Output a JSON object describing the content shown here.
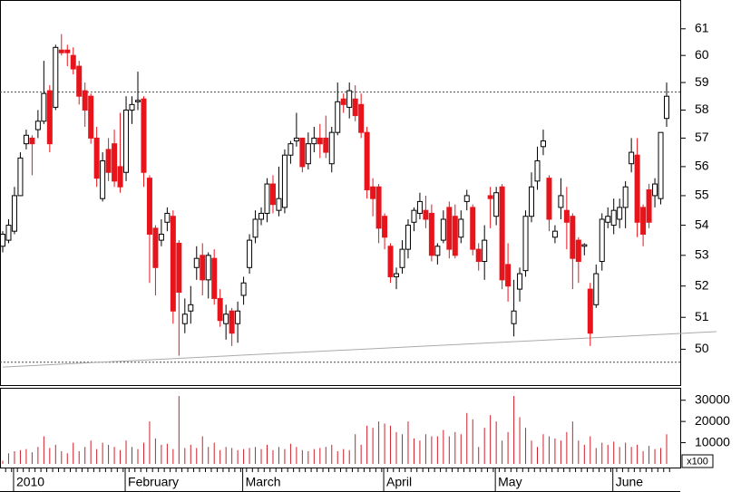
{
  "chart_data": {
    "type": "candlestick",
    "log_scale": true,
    "categories": [
      null,
      null,
      "2010",
      null,
      null,
      null,
      null,
      null,
      null,
      null,
      null,
      null,
      null,
      null,
      null,
      null,
      null,
      null,
      null,
      null,
      null,
      "February",
      null,
      null,
      null,
      null,
      null,
      null,
      null,
      null,
      null,
      null,
      null,
      null,
      null,
      null,
      null,
      null,
      null,
      null,
      null,
      "March",
      null,
      null,
      null,
      null,
      null,
      null,
      null,
      null,
      null,
      null,
      null,
      null,
      null,
      null,
      null,
      null,
      null,
      null,
      null,
      null,
      null,
      null,
      null,
      "April",
      null,
      null,
      null,
      null,
      null,
      null,
      null,
      null,
      null,
      null,
      null,
      null,
      null,
      null,
      null,
      null,
      null,
      null,
      "May",
      null,
      null,
      null,
      null,
      null,
      null,
      null,
      null,
      null,
      null,
      null,
      null,
      null,
      null,
      null,
      null,
      null,
      null,
      null,
      "June",
      null,
      null,
      null,
      null,
      null,
      null,
      null,
      null,
      null
    ],
    "open": [
      53.3,
      53.5,
      53.8,
      55.0,
      56.8,
      57.0,
      57.3,
      57.6,
      58.7,
      58.1,
      60.2,
      60.2,
      60.0,
      59.6,
      58.7,
      58.5,
      57.0,
      54.9,
      56.6,
      56.8,
      56.0,
      55.8,
      58.0,
      58.3,
      58.4,
      55.6,
      53.9,
      53.5,
      54.1,
      54.3,
      53.4,
      50.8,
      51.2,
      52.6,
      53.0,
      52.2,
      52.9,
      51.6,
      50.8,
      51.2,
      50.8,
      51.7,
      52.6,
      53.6,
      54.2,
      54.4,
      55.4,
      54.5,
      54.6,
      56.4,
      56.9,
      57.0,
      56.1,
      56.8,
      57.0,
      57.0,
      56.1,
      57.2,
      58.4,
      58.1,
      58.4,
      58.2,
      57.2,
      55.3,
      55.3,
      54.3,
      53.3,
      52.3,
      52.6,
      53.2,
      54.1,
      54.4,
      54.5,
      54.4,
      53.0,
      53.5,
      54.6,
      54.3,
      53.6,
      54.8,
      54.6,
      53.2,
      52.8,
      55.0,
      54.3,
      55.3,
      52.7,
      50.8,
      51.9,
      52.5,
      54.3,
      55.5,
      56.7,
      55.6,
      53.6,
      54.6,
      54.5,
      54.3,
      53.5,
      53.3,
      51.9,
      51.4,
      52.8,
      54.1,
      54.0,
      54.2,
      54.6,
      56.1,
      56.4,
      54.6,
      55.2,
      55.0,
      54.9,
      57.7
    ],
    "high": [
      53.8,
      54.2,
      55.3,
      56.5,
      57.3,
      57.1,
      58.0,
      59.8,
      58.9,
      60.4,
      60.8,
      60.4,
      60.3,
      59.8,
      59.0,
      58.6,
      57.4,
      56.5,
      57.0,
      57.3,
      57.9,
      58.5,
      58.5,
      59.4,
      58.5,
      55.7,
      54.0,
      54.2,
      54.6,
      54.5,
      53.5,
      51.6,
      52.0,
      53.3,
      53.4,
      53.1,
      53.2,
      51.9,
      51.4,
      51.3,
      51.5,
      52.3,
      53.7,
      54.5,
      54.6,
      55.6,
      55.7,
      56.0,
      56.6,
      56.9,
      57.9,
      57.0,
      57.2,
      57.4,
      57.5,
      57.8,
      57.4,
      59.0,
      58.6,
      59.0,
      58.9,
      58.6,
      57.4,
      55.6,
      55.4,
      54.4,
      53.4,
      52.6,
      53.5,
      54.2,
      54.6,
      55.1,
      55.0,
      54.7,
      53.4,
      54.5,
      54.8,
      54.7,
      54.5,
      55.2,
      54.7,
      53.4,
      54.0,
      55.3,
      55.3,
      55.4,
      53.4,
      52.2,
      52.6,
      54.5,
      55.8,
      56.7,
      57.3,
      55.7,
      54.0,
      55.6,
      55.3,
      54.4,
      53.6,
      53.4,
      52.1,
      52.7,
      54.4,
      54.6,
      54.9,
      54.9,
      55.5,
      57.0,
      57.0,
      54.7,
      55.4,
      55.6,
      57.2,
      59.0
    ],
    "low": [
      53.1,
      53.4,
      53.7,
      55.0,
      56.6,
      55.7,
      57.0,
      57.5,
      56.5,
      58.0,
      60.0,
      59.6,
      59.3,
      58.2,
      57.4,
      56.8,
      55.3,
      54.8,
      55.5,
      55.3,
      55.1,
      55.5,
      57.5,
      58.0,
      55.3,
      52.1,
      51.7,
      53.3,
      53.8,
      50.8,
      49.8,
      50.5,
      50.8,
      52.2,
      51.7,
      51.6,
      51.4,
      50.7,
      50.3,
      50.1,
      50.2,
      51.4,
      52.4,
      53.4,
      54.0,
      54.1,
      54.4,
      54.3,
      54.4,
      56.1,
      56.7,
      55.8,
      55.9,
      56.5,
      56.3,
      56.3,
      55.8,
      57.1,
      57.9,
      57.7,
      57.6,
      57.0,
      54.9,
      54.3,
      53.4,
      53.2,
      52.1,
      51.9,
      52.4,
      52.9,
      53.8,
      54.2,
      53.9,
      52.8,
      52.7,
      53.4,
      52.9,
      52.9,
      53.4,
      54.5,
      53.0,
      52.5,
      52.2,
      53.9,
      54.0,
      51.9,
      51.5,
      50.4,
      51.5,
      52.3,
      54.1,
      55.2,
      56.4,
      53.8,
      53.4,
      54.2,
      53.2,
      51.9,
      52.1,
      53.0,
      50.1,
      51.3,
      52.5,
      53.9,
      53.7,
      53.9,
      53.9,
      55.8,
      53.6,
      53.3,
      53.9,
      54.6,
      54.7,
      57.4
    ],
    "close": [
      53.7,
      54.0,
      55.0,
      56.3,
      57.1,
      56.8,
      57.6,
      58.6,
      56.8,
      60.3,
      60.1,
      60.1,
      59.5,
      58.5,
      58.0,
      57.0,
      55.6,
      56.2,
      55.8,
      55.5,
      55.3,
      58.0,
      58.2,
      58.35,
      55.8,
      53.7,
      52.6,
      53.7,
      54.4,
      51.2,
      51.8,
      51.1,
      51.4,
      52.9,
      52.2,
      53.0,
      51.6,
      50.9,
      51.1,
      50.5,
      51.2,
      52.1,
      53.5,
      54.2,
      54.4,
      55.4,
      54.7,
      54.9,
      56.4,
      56.8,
      57.0,
      56.0,
      56.8,
      57.0,
      56.8,
      56.5,
      57.2,
      58.3,
      58.2,
      58.7,
      57.8,
      57.2,
      55.2,
      54.9,
      53.9,
      53.6,
      52.3,
      52.4,
      53.2,
      54.0,
      54.5,
      54.8,
      54.2,
      53.0,
      53.3,
      54.2,
      53.2,
      53.0,
      54.2,
      55.0,
      53.2,
      52.8,
      53.5,
      54.9,
      55.1,
      52.2,
      52.0,
      51.2,
      52.4,
      54.3,
      55.3,
      56.2,
      56.9,
      54.2,
      53.8,
      55.0,
      54.1,
      52.9,
      52.8,
      53.35,
      50.5,
      52.4,
      54.2,
      54.3,
      54.5,
      54.6,
      55.3,
      56.5,
      54.1,
      53.7,
      54.1,
      55.4,
      57.2,
      58.5
    ],
    "up_color": "#ffffff",
    "down_color": "#e8141c",
    "ylim": [
      48.9,
      62.1
    ],
    "yticks": [
      50,
      51,
      52,
      53,
      54,
      55,
      56,
      57,
      58,
      59,
      60,
      61
    ],
    "hlines": [
      58.65,
      49.6
    ],
    "trendline": {
      "x": [
        0,
        121.5
      ],
      "y": [
        49.45,
        50.55
      ]
    },
    "volume": {
      "values": [
        1500,
        5000,
        6000,
        6500,
        7000,
        5500,
        8000,
        13000,
        7500,
        9000,
        6000,
        5000,
        10000,
        6000,
        8000,
        11000,
        7000,
        10000,
        9000,
        8000,
        6500,
        11000,
        8000,
        7000,
        10000,
        20000,
        12000,
        9000,
        9500,
        7000,
        32000,
        7500,
        9000,
        7500,
        13000,
        8000,
        10000,
        6500,
        8000,
        7500,
        6500,
        7000,
        7500,
        8000,
        7000,
        9000,
        6500,
        8000,
        7000,
        9500,
        8000,
        6500,
        6000,
        7000,
        7500,
        8000,
        9000,
        6000,
        7000,
        6500,
        14000,
        9000,
        18000,
        17000,
        20000,
        19000,
        18000,
        15000,
        14000,
        20000,
        12000,
        11000,
        14000,
        13000,
        13000,
        16000,
        13000,
        15000,
        14000,
        24000,
        21000,
        8000,
        17000,
        23000,
        20000,
        11000,
        15000,
        32000,
        22000,
        17000,
        11000,
        8000,
        14000,
        13000,
        12000,
        11000,
        15000,
        20000,
        11000,
        9000,
        13000,
        7500,
        10000,
        9000,
        10500,
        8000,
        10000,
        8000,
        9000,
        6000,
        8500,
        7000,
        7500,
        14000
      ],
      "color": "#d0202a",
      "ylim": [
        0,
        35000
      ],
      "yticks": [
        10000,
        20000,
        30000
      ],
      "unit": "x100"
    }
  }
}
